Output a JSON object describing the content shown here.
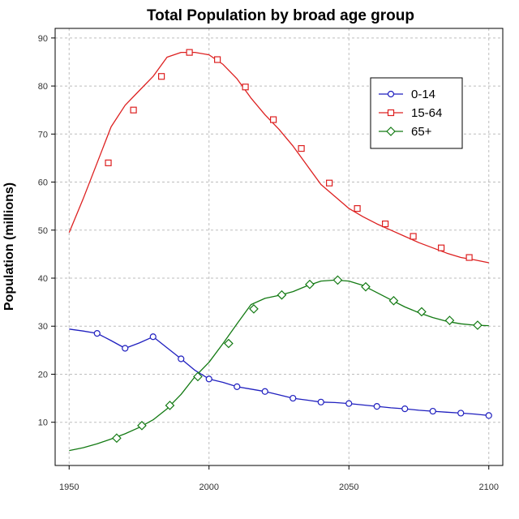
{
  "chart_data": {
    "type": "line",
    "title": "Total Population by broad age group",
    "xlabel": "",
    "ylabel": "Population (millions)",
    "xlim": [
      1945,
      2105
    ],
    "ylim": [
      1,
      92
    ],
    "xticks": [
      1950,
      2000,
      2050,
      2100
    ],
    "yticks": [
      10,
      20,
      30,
      40,
      50,
      60,
      70,
      80,
      90
    ],
    "grid": true,
    "legend_position": "top-right",
    "series": [
      {
        "name": "0-14",
        "color": "#1f1fbf",
        "marker": "circle",
        "x": [
          1950,
          1955,
          1960,
          1965,
          1970,
          1975,
          1980,
          1985,
          1990,
          1995,
          2000,
          2005,
          2010,
          2015,
          2020,
          2025,
          2030,
          2035,
          2040,
          2045,
          2050,
          2055,
          2060,
          2065,
          2070,
          2075,
          2080,
          2085,
          2090,
          2095,
          2100
        ],
        "values": [
          29.4,
          29.0,
          28.5,
          27.0,
          25.4,
          26.5,
          27.8,
          25.5,
          23.2,
          20.8,
          19.0,
          18.3,
          17.4,
          16.9,
          16.4,
          15.7,
          15.0,
          14.6,
          14.2,
          14.1,
          13.9,
          13.6,
          13.3,
          13.0,
          12.8,
          12.5,
          12.3,
          12.1,
          11.9,
          11.7,
          11.4
        ],
        "marker_x": [
          1960,
          1970,
          1980,
          1990,
          2000,
          2010,
          2020,
          2030,
          2040,
          2050,
          2060,
          2070,
          2080,
          2090,
          2100
        ],
        "marker_values": [
          28.5,
          25.4,
          27.8,
          23.2,
          19.0,
          17.4,
          16.4,
          15.0,
          14.2,
          13.9,
          13.3,
          12.8,
          12.3,
          11.9,
          11.4
        ]
      },
      {
        "name": "15-64",
        "color": "#dd2020",
        "marker": "square",
        "x": [
          1950,
          1955,
          1960,
          1965,
          1970,
          1975,
          1980,
          1985,
          1990,
          1995,
          2000,
          2005,
          2010,
          2015,
          2020,
          2025,
          2030,
          2035,
          2040,
          2045,
          2050,
          2055,
          2060,
          2065,
          2070,
          2075,
          2080,
          2085,
          2090,
          2095,
          2100
        ],
        "values": [
          49.5,
          56.5,
          64.0,
          71.5,
          76.0,
          79.0,
          82.0,
          86.0,
          87.0,
          87.0,
          86.5,
          84.5,
          81.5,
          77.5,
          74.0,
          71.0,
          67.5,
          63.5,
          59.5,
          57.0,
          54.5,
          52.8,
          51.3,
          50.0,
          48.7,
          47.4,
          46.3,
          45.2,
          44.3,
          43.8,
          43.2
        ],
        "marker_x": [
          1964,
          1973,
          1983,
          1993,
          2003,
          2013,
          2023,
          2033,
          2043,
          2053,
          2063,
          2073,
          2083,
          2093
        ],
        "marker_values": [
          64.0,
          75.0,
          82.0,
          87.0,
          85.5,
          79.8,
          73.0,
          67.0,
          59.8,
          54.5,
          51.3,
          48.7,
          46.3,
          44.3
        ]
      },
      {
        "name": "65+",
        "color": "#137a13",
        "marker": "diamond",
        "x": [
          1950,
          1955,
          1960,
          1965,
          1970,
          1975,
          1980,
          1985,
          1990,
          1995,
          2000,
          2005,
          2010,
          2015,
          2020,
          2025,
          2030,
          2035,
          2040,
          2045,
          2050,
          2055,
          2060,
          2065,
          2070,
          2075,
          2080,
          2085,
          2090,
          2095,
          2100
        ],
        "values": [
          4.1,
          4.7,
          5.5,
          6.5,
          7.6,
          8.9,
          10.5,
          12.8,
          15.8,
          19.5,
          22.5,
          26.4,
          30.5,
          34.5,
          35.8,
          36.4,
          37.2,
          38.4,
          39.4,
          39.6,
          39.4,
          38.5,
          37.0,
          35.5,
          34.0,
          32.8,
          31.8,
          31.0,
          30.5,
          30.2,
          30.1
        ],
        "marker_x": [
          1967,
          1976,
          1986,
          1996,
          2007,
          2016,
          2026,
          2036,
          2046,
          2056,
          2066,
          2076,
          2086,
          2096
        ],
        "marker_values": [
          6.7,
          9.3,
          13.5,
          19.5,
          26.4,
          33.6,
          36.5,
          38.7,
          39.6,
          38.2,
          35.3,
          33.0,
          31.2,
          30.2
        ]
      }
    ]
  }
}
